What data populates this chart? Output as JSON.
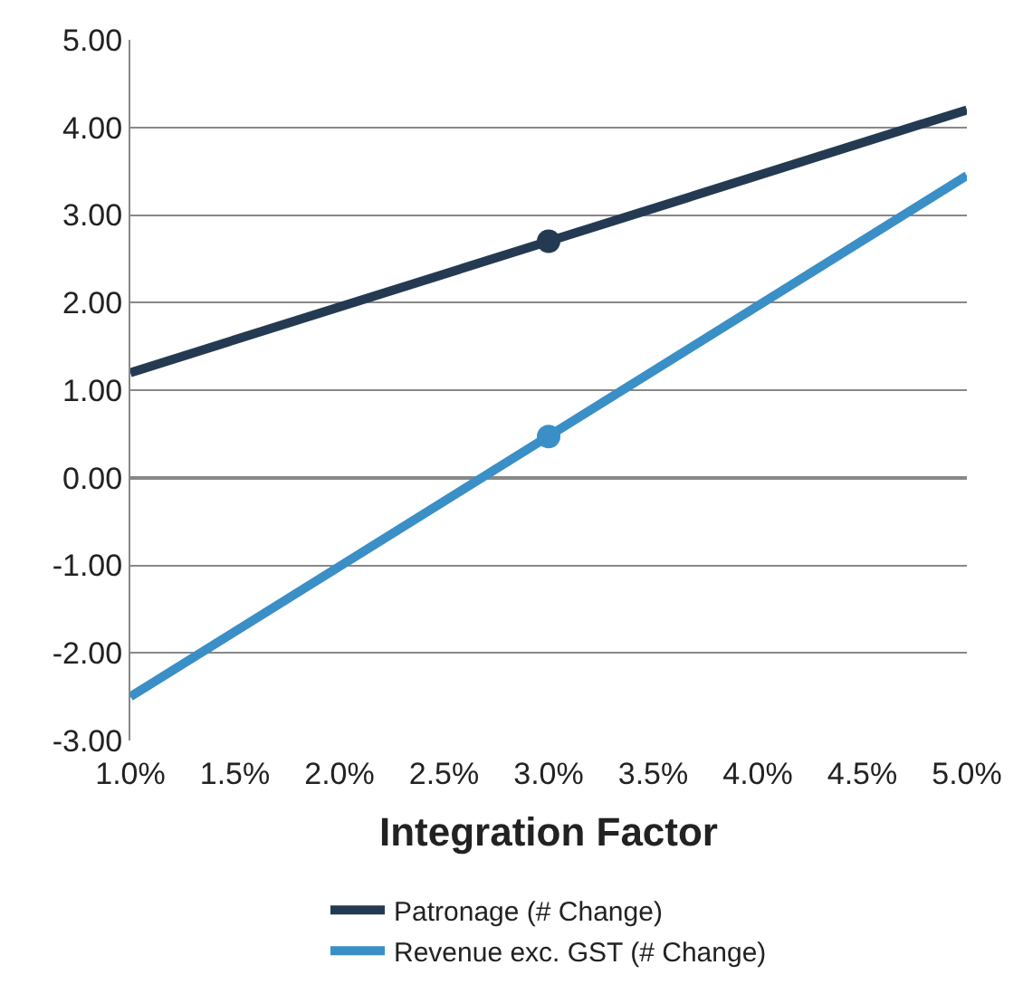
{
  "chart_data": {
    "type": "line",
    "xlabel": "Integration Factor",
    "x": [
      1,
      5
    ],
    "series": [
      {
        "name": "Patronage (# Change)",
        "color": "#243a52",
        "values": [
          1.2,
          4.2
        ]
      },
      {
        "name": "Revenue exc. GST (# Change)",
        "color": "#3a8fc6",
        "values": [
          -2.5,
          3.45
        ]
      },
      {
        "type": "scatter",
        "marker": "circle",
        "color": "#243a52",
        "x": [
          3
        ],
        "values": [
          2.7
        ]
      },
      {
        "type": "scatter",
        "marker": "circle",
        "color": "#3a8fc6",
        "x": [
          3
        ],
        "values": [
          0.47
        ]
      }
    ],
    "xlim": [
      1,
      5
    ],
    "xticks": [
      {
        "value": 1,
        "label": "1.0%"
      },
      {
        "value": 1.5,
        "label": "1.5%"
      },
      {
        "value": 2,
        "label": "2.0%"
      },
      {
        "value": 2.5,
        "label": "2.5%"
      },
      {
        "value": 3,
        "label": "3.0%"
      },
      {
        "value": 3.5,
        "label": "3.5%"
      },
      {
        "value": 4,
        "label": "4.0%"
      },
      {
        "value": 4.5,
        "label": "4.5%"
      },
      {
        "value": 5,
        "label": "5.0%"
      }
    ],
    "ylim": [
      -3,
      5
    ],
    "yticks": [
      {
        "value": -3,
        "label": "-3.00"
      },
      {
        "value": -2,
        "label": "-2.00"
      },
      {
        "value": -1,
        "label": "-1.00"
      },
      {
        "value": 0,
        "label": "0.00"
      },
      {
        "value": 1,
        "label": "1.00"
      },
      {
        "value": 2,
        "label": "2.00"
      },
      {
        "value": 3,
        "label": "3.00"
      },
      {
        "value": 4,
        "label": "4.00"
      },
      {
        "value": 5,
        "label": "5.00"
      }
    ],
    "grid": "y",
    "legend": "bottom",
    "line_style": "solid"
  }
}
